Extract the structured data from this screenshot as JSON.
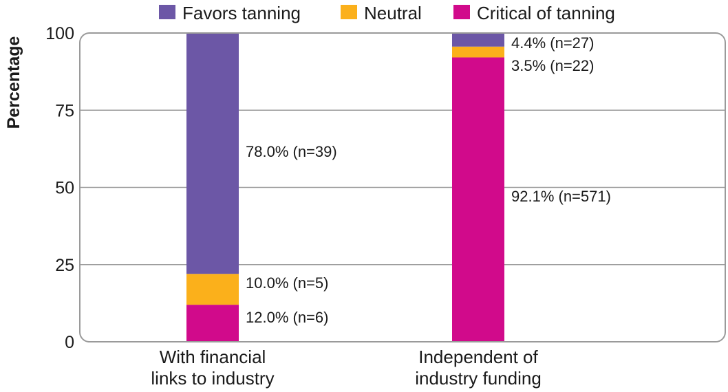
{
  "chart_data": {
    "type": "bar",
    "stacked": true,
    "orientation": "vertical",
    "categories": [
      "With financial links to industry",
      "Independent of industry funding"
    ],
    "category_lines": [
      [
        "With financial",
        "links to industry"
      ],
      [
        "Independent of",
        "industry funding"
      ]
    ],
    "series": [
      {
        "name": "Critical of tanning",
        "color": "#d10a8b",
        "values": [
          12.0,
          92.1
        ],
        "labels": [
          "12.0% (n=6)",
          "92.1% (n=571)"
        ]
      },
      {
        "name": "Neutral",
        "color": "#fbb01b",
        "values": [
          10.0,
          3.5
        ],
        "labels": [
          "10.0% (n=5)",
          "3.5% (n=22)"
        ]
      },
      {
        "name": "Favors tanning",
        "color": "#6c57a6",
        "values": [
          78.0,
          4.4
        ],
        "labels": [
          "78.0% (n=39)",
          "4.4% (n=27)"
        ]
      }
    ],
    "legend_order": [
      "Favors tanning",
      "Neutral",
      "Critical of tanning"
    ],
    "legend_position": "top",
    "ylabel": "Percentage",
    "xlabel": "",
    "ylim": [
      0,
      100
    ],
    "yticks": [
      0,
      25,
      50,
      75,
      100
    ],
    "grid": true
  }
}
